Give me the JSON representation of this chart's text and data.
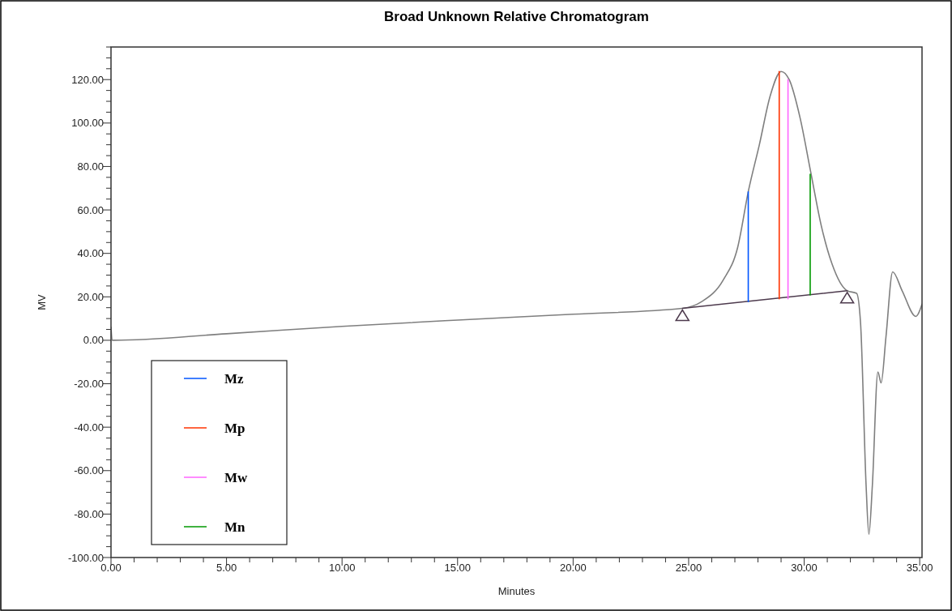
{
  "chart_data": {
    "type": "line",
    "title": "Broad Unknown Relative Chromatogram",
    "xlabel": "Minutes",
    "ylabel": "MV",
    "xlim": [
      0,
      35.1
    ],
    "ylim": [
      -100,
      135
    ],
    "xticks": [
      {
        "value": 0,
        "label": "0.00"
      },
      {
        "value": 1,
        "label": null
      },
      {
        "value": 2,
        "label": null
      },
      {
        "value": 3,
        "label": null
      },
      {
        "value": 4,
        "label": null
      },
      {
        "value": 5,
        "label": "5.00"
      },
      {
        "value": 6,
        "label": null
      },
      {
        "value": 7,
        "label": null
      },
      {
        "value": 8,
        "label": null
      },
      {
        "value": 9,
        "label": null
      },
      {
        "value": 10,
        "label": "10.00"
      },
      {
        "value": 11,
        "label": null
      },
      {
        "value": 12,
        "label": null
      },
      {
        "value": 13,
        "label": null
      },
      {
        "value": 14,
        "label": null
      },
      {
        "value": 15,
        "label": "15.00"
      },
      {
        "value": 16,
        "label": null
      },
      {
        "value": 17,
        "label": null
      },
      {
        "value": 18,
        "label": null
      },
      {
        "value": 19,
        "label": null
      },
      {
        "value": 20,
        "label": "20.00"
      },
      {
        "value": 21,
        "label": null
      },
      {
        "value": 22,
        "label": null
      },
      {
        "value": 23,
        "label": null
      },
      {
        "value": 24,
        "label": null
      },
      {
        "value": 25,
        "label": "25.00"
      },
      {
        "value": 26,
        "label": null
      },
      {
        "value": 27,
        "label": null
      },
      {
        "value": 28,
        "label": null
      },
      {
        "value": 29,
        "label": null
      },
      {
        "value": 30,
        "label": "30.00"
      },
      {
        "value": 31,
        "label": null
      },
      {
        "value": 32,
        "label": null
      },
      {
        "value": 33,
        "label": null
      },
      {
        "value": 34,
        "label": null
      },
      {
        "value": 35,
        "label": "35.00"
      }
    ],
    "yticks": [
      {
        "value": -100,
        "label": "-100.00"
      },
      {
        "value": -95,
        "label": null
      },
      {
        "value": -90,
        "label": null
      },
      {
        "value": -85,
        "label": null
      },
      {
        "value": -80,
        "label": "-80.00"
      },
      {
        "value": -75,
        "label": null
      },
      {
        "value": -70,
        "label": null
      },
      {
        "value": -65,
        "label": null
      },
      {
        "value": -60,
        "label": "-60.00"
      },
      {
        "value": -55,
        "label": null
      },
      {
        "value": -50,
        "label": null
      },
      {
        "value": -45,
        "label": null
      },
      {
        "value": -40,
        "label": "-40.00"
      },
      {
        "value": -35,
        "label": null
      },
      {
        "value": -30,
        "label": null
      },
      {
        "value": -25,
        "label": null
      },
      {
        "value": -20,
        "label": "-20.00"
      },
      {
        "value": -15,
        "label": null
      },
      {
        "value": -10,
        "label": null
      },
      {
        "value": -5,
        "label": null
      },
      {
        "value": 0,
        "label": "0.00"
      },
      {
        "value": 5,
        "label": null
      },
      {
        "value": 10,
        "label": null
      },
      {
        "value": 15,
        "label": null
      },
      {
        "value": 20,
        "label": "20.00"
      },
      {
        "value": 25,
        "label": null
      },
      {
        "value": 30,
        "label": null
      },
      {
        "value": 35,
        "label": null
      },
      {
        "value": 40,
        "label": "40.00"
      },
      {
        "value": 45,
        "label": null
      },
      {
        "value": 50,
        "label": null
      },
      {
        "value": 55,
        "label": null
      },
      {
        "value": 60,
        "label": "60.00"
      },
      {
        "value": 65,
        "label": null
      },
      {
        "value": 70,
        "label": null
      },
      {
        "value": 75,
        "label": null
      },
      {
        "value": 80,
        "label": "80.00"
      },
      {
        "value": 85,
        "label": null
      },
      {
        "value": 90,
        "label": null
      },
      {
        "value": 95,
        "label": null
      },
      {
        "value": 100,
        "label": "100.00"
      },
      {
        "value": 105,
        "label": null
      },
      {
        "value": 110,
        "label": null
      },
      {
        "value": 115,
        "label": null
      },
      {
        "value": 120,
        "label": "120.00"
      },
      {
        "value": 125,
        "label": null
      },
      {
        "value": 130,
        "label": null
      },
      {
        "value": 135,
        "label": null
      }
    ],
    "grid": false,
    "legend": "bottom left",
    "marker": "none",
    "line_style": "solid",
    "series": [
      {
        "color": "#7f7f7f",
        "x": [
          0,
          0.05,
          0.15,
          5,
          10,
          15,
          20,
          24.73,
          25.57,
          26.5,
          27.12,
          27.59,
          28.06,
          28.53,
          29.0,
          29.35,
          29.82,
          30.28,
          30.74,
          31.2,
          31.86,
          32.27,
          32.44,
          32.68,
          32.8,
          32.95,
          33.19,
          33.33,
          33.54,
          33.83,
          34.24,
          34.83,
          35.1
        ],
        "values": [
          6,
          0,
          0,
          3,
          6.4,
          9.3,
          12,
          14.7,
          17.8,
          27.8,
          42.7,
          68.9,
          90,
          112.5,
          123.7,
          120,
          102.5,
          77.6,
          52.7,
          35.3,
          22.8,
          21.6,
          7.9,
          -66.9,
          -89.3,
          -67,
          -14.6,
          -19.6,
          1.6,
          31.5,
          22.8,
          11,
          16.6
        ]
      },
      {
        "color": "#4d3a4d",
        "x": [
          24.73,
          31.86
        ],
        "values": [
          14.7,
          22.8
        ]
      },
      {
        "name": "Mz",
        "color": "#0055ff",
        "x": [
          27.58,
          27.58
        ],
        "values": [
          17.8,
          68.3
        ]
      },
      {
        "name": "Mp",
        "color": "#ff3300",
        "x": [
          28.92,
          28.92
        ],
        "values": [
          19.1,
          123.7
        ]
      },
      {
        "name": "Mw",
        "color": "#ff66ff",
        "x": [
          29.3,
          29.3
        ],
        "values": [
          19.1,
          120
        ]
      },
      {
        "name": "Mn",
        "color": "#009900",
        "x": [
          30.26,
          30.26
        ],
        "values": [
          20.9,
          76.4
        ]
      }
    ]
  }
}
